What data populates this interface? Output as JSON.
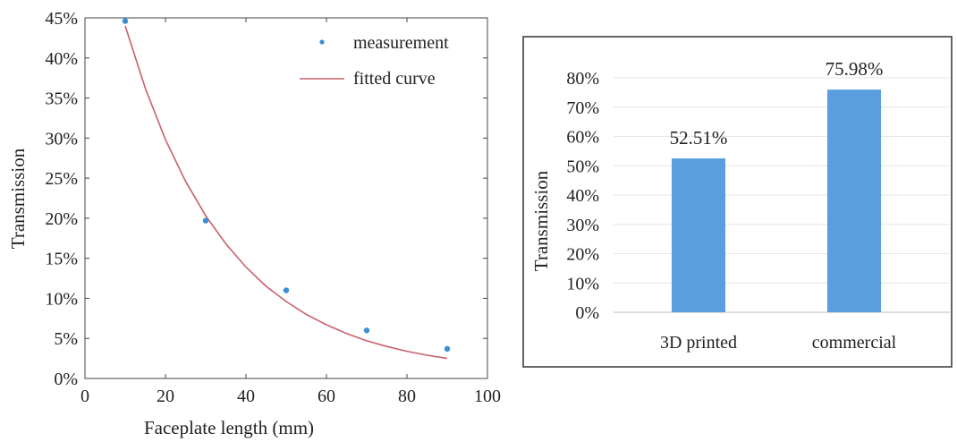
{
  "chart_data": [
    {
      "type": "scatter",
      "xlabel": "Faceplate length (mm)",
      "ylabel": "Transmission",
      "xlim": [
        0,
        100
      ],
      "ylim": [
        0,
        45
      ],
      "xticks": [
        0,
        20,
        40,
        60,
        80,
        100
      ],
      "yticks": [
        0,
        5,
        10,
        15,
        20,
        25,
        30,
        35,
        40,
        45
      ],
      "ytick_suffix": "%",
      "grid": false,
      "legend": "top-right",
      "series": [
        {
          "name": "measurement",
          "kind": "scatter",
          "color": "#3a8fd6",
          "x": [
            10,
            30,
            50,
            70,
            90
          ],
          "y": [
            44.6,
            19.7,
            11.0,
            6.0,
            3.7
          ]
        },
        {
          "name": "fitted curve",
          "kind": "line",
          "color": "#c9606a",
          "x": [
            10,
            15,
            20,
            25,
            30,
            35,
            40,
            45,
            50,
            55,
            60,
            65,
            70,
            75,
            80,
            85,
            90
          ],
          "y": [
            44.0,
            36.2,
            29.8,
            24.6,
            20.3,
            16.8,
            13.9,
            11.5,
            9.6,
            8.0,
            6.7,
            5.6,
            4.7,
            4.0,
            3.4,
            2.9,
            2.5
          ]
        }
      ]
    },
    {
      "type": "bar",
      "ylabel": "Transmission",
      "categories": [
        "3D printed",
        "commercial"
      ],
      "values": [
        52.51,
        75.98
      ],
      "data_labels": [
        "52.51%",
        "75.98%"
      ],
      "ylim": [
        0,
        80
      ],
      "yticks": [
        0,
        10,
        20,
        30,
        40,
        50,
        60,
        70,
        80
      ],
      "ytick_suffix": "%",
      "grid": true,
      "bar_color": "#5a9ee0"
    }
  ]
}
